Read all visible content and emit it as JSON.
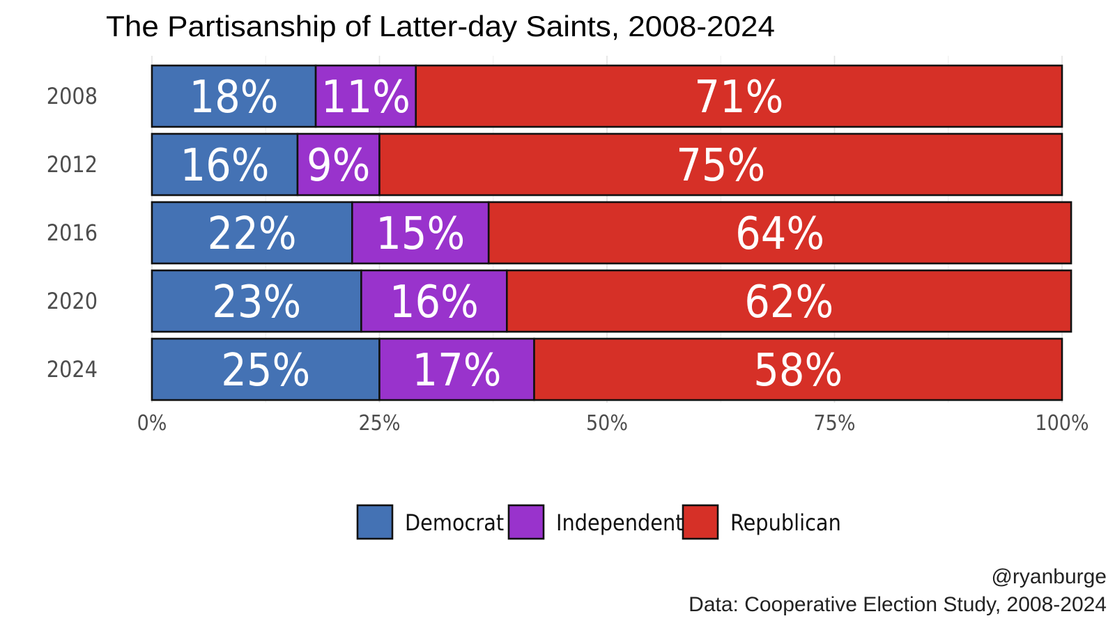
{
  "chart_data": {
    "type": "bar",
    "orientation": "horizontal",
    "stacked": true,
    "title": "The Partisanship of Latter-day Saints, 2008-2024",
    "categories": [
      "2008",
      "2012",
      "2016",
      "2020",
      "2024"
    ],
    "series": [
      {
        "name": "Democrat",
        "color": "#4472B4",
        "values": [
          18,
          16,
          22,
          23,
          25
        ]
      },
      {
        "name": "Independent",
        "color": "#9933CC",
        "values": [
          11,
          9,
          15,
          16,
          17
        ]
      },
      {
        "name": "Republican",
        "color": "#D63027",
        "values": [
          71,
          75,
          64,
          62,
          58
        ]
      }
    ],
    "data_labels": [
      [
        "18%",
        "11%",
        "71%"
      ],
      [
        "16%",
        "9%",
        "75%"
      ],
      [
        "22%",
        "15%",
        "64%"
      ],
      [
        "23%",
        "16%",
        "62%"
      ],
      [
        "25%",
        "17%",
        "58%"
      ]
    ],
    "x_ticks": [
      0,
      25,
      50,
      75,
      100
    ],
    "x_tick_labels": [
      "0%",
      "25%",
      "50%",
      "75%",
      "100%"
    ],
    "xlim": [
      0,
      100
    ],
    "grid": true,
    "legend_position": "bottom",
    "caption": [
      "@ryanburge",
      "Data: Cooperative Election Study, 2008-2024"
    ]
  }
}
